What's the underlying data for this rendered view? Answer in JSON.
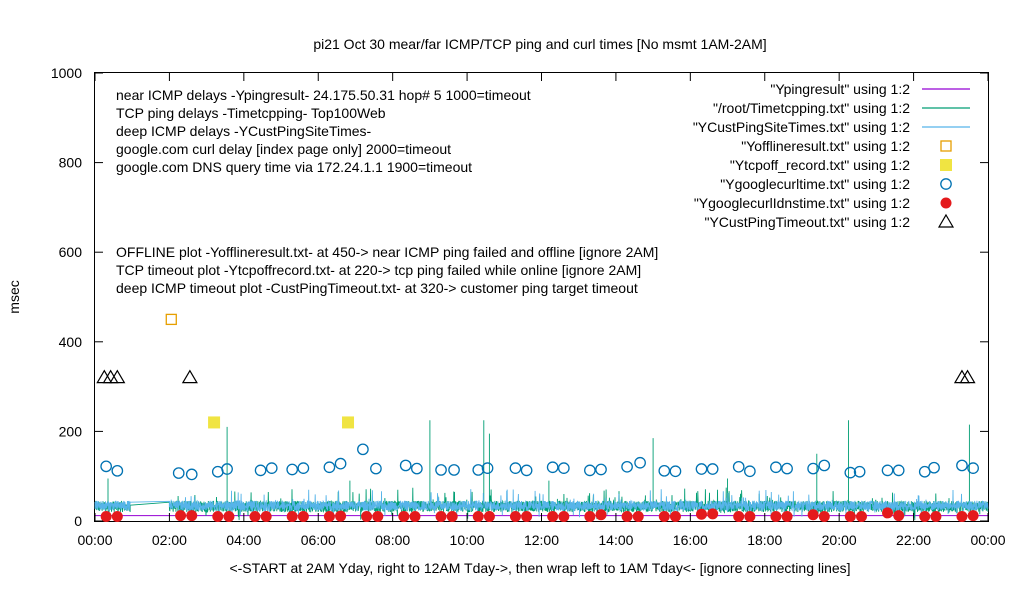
{
  "chart_data": {
    "type": "line",
    "title": "pi21 Oct 30  mear/far ICMP/TCP ping and curl times [No msmt 1AM-2AM]",
    "xlabel": "<-START at 2AM Yday, right to 12AM Tday->, then wrap left to 1AM Tday<- [ignore connecting lines]",
    "ylabel": "msec",
    "xlim": [
      0,
      24
    ],
    "ylim": [
      0,
      1000
    ],
    "x_ticks": [
      {
        "v": 0,
        "label": "00:00"
      },
      {
        "v": 2,
        "label": "02:00"
      },
      {
        "v": 4,
        "label": "04:00"
      },
      {
        "v": 6,
        "label": "06:00"
      },
      {
        "v": 8,
        "label": "08:00"
      },
      {
        "v": 10,
        "label": "10:00"
      },
      {
        "v": 12,
        "label": "12:00"
      },
      {
        "v": 14,
        "label": "14:00"
      },
      {
        "v": 16,
        "label": "16:00"
      },
      {
        "v": 18,
        "label": "18:00"
      },
      {
        "v": 20,
        "label": "20:00"
      },
      {
        "v": 22,
        "label": "22:00"
      },
      {
        "v": 24,
        "label": "00:00"
      }
    ],
    "y_ticks": [
      {
        "v": 0,
        "label": "0"
      },
      {
        "v": 200,
        "label": "200"
      },
      {
        "v": 400,
        "label": "400"
      },
      {
        "v": 600,
        "label": "600"
      },
      {
        "v": 800,
        "label": "800"
      },
      {
        "v": 1000,
        "label": "1000"
      }
    ],
    "annotations": {
      "top": [
        "near ICMP delays -Ypingresult- 24.175.50.31 hop# 5 1000=timeout",
        "TCP ping delays -Timetcpping- Top100Web",
        "deep ICMP delays -YCustPingSiteTimes-",
        "google.com curl delay [index page only] 2000=timeout",
        "google.com DNS query time via 172.24.1.1 1900=timeout"
      ],
      "middle": [
        "OFFLINE plot -Yofflineresult.txt- at 450-> near ICMP ping failed and offline [ignore 2AM]",
        "TCP timeout plot -Ytcpoffrecord.txt- at 220-> tcp ping failed while online [ignore 2AM]",
        "deep ICMP timeout plot -CustPingTimeout.txt- at 320-> customer ping target timeout"
      ]
    },
    "series": [
      {
        "name": "\"Ypingresult\" using 1:2",
        "style": "line",
        "color": "#9400d3",
        "level": 12
      },
      {
        "name": "\"/root/Timetcpping.txt\" using 1:2",
        "style": "line",
        "color": "#009e73",
        "baseline": 30,
        "jitter": 25,
        "spikes": [
          {
            "x": 3.55,
            "y": 210
          },
          {
            "x": 9.0,
            "y": 225
          },
          {
            "x": 10.45,
            "y": 225
          },
          {
            "x": 10.6,
            "y": 195
          },
          {
            "x": 15.0,
            "y": 185
          },
          {
            "x": 20.25,
            "y": 225
          },
          {
            "x": 23.5,
            "y": 215
          },
          {
            "x": 19.4,
            "y": 150
          },
          {
            "x": 0.35,
            "y": 95
          },
          {
            "x": 6.85,
            "y": 90
          },
          {
            "x": 12.2,
            "y": 90
          },
          {
            "x": 17.0,
            "y": 95
          }
        ]
      },
      {
        "name": "\"YCustPingSiteTimes.txt\" using 1:2",
        "style": "line",
        "color": "#56b4e9",
        "baseline": 32,
        "jitter": 22
      },
      {
        "name": "\"Yofflineresult.txt\" using 1:2",
        "style": "open-square",
        "color": "#e69f00",
        "points": [
          [
            2.05,
            450
          ]
        ]
      },
      {
        "name": "\"Ytcpoff_record.txt\" using 1:2",
        "style": "filled-square",
        "color": "#f0e442",
        "points": [
          [
            3.2,
            220
          ],
          [
            6.8,
            220
          ]
        ]
      },
      {
        "name": "\"Ygooglecurltime.txt\" using 1:2",
        "style": "open-circle",
        "color": "#0072b2",
        "points": [
          [
            0.3,
            122
          ],
          [
            0.6,
            112
          ],
          [
            2.25,
            107
          ],
          [
            2.6,
            104
          ],
          [
            3.3,
            110
          ],
          [
            3.55,
            116
          ],
          [
            4.45,
            113
          ],
          [
            4.75,
            118
          ],
          [
            5.3,
            115
          ],
          [
            5.6,
            118
          ],
          [
            6.3,
            120
          ],
          [
            6.6,
            128
          ],
          [
            7.2,
            160
          ],
          [
            7.55,
            117
          ],
          [
            8.35,
            124
          ],
          [
            8.65,
            117
          ],
          [
            9.3,
            114
          ],
          [
            9.65,
            114
          ],
          [
            10.3,
            114
          ],
          [
            10.55,
            118
          ],
          [
            11.3,
            118
          ],
          [
            11.6,
            113
          ],
          [
            12.3,
            120
          ],
          [
            12.6,
            118
          ],
          [
            13.3,
            113
          ],
          [
            13.6,
            115
          ],
          [
            14.3,
            121
          ],
          [
            14.65,
            130
          ],
          [
            15.3,
            112
          ],
          [
            15.6,
            111
          ],
          [
            16.3,
            116
          ],
          [
            16.6,
            116
          ],
          [
            17.3,
            121
          ],
          [
            17.6,
            111
          ],
          [
            18.3,
            120
          ],
          [
            18.6,
            117
          ],
          [
            19.3,
            117
          ],
          [
            19.6,
            124
          ],
          [
            20.3,
            108
          ],
          [
            20.55,
            110
          ],
          [
            21.3,
            113
          ],
          [
            21.6,
            113
          ],
          [
            22.3,
            110
          ],
          [
            22.55,
            119
          ],
          [
            23.3,
            124
          ],
          [
            23.6,
            118
          ]
        ]
      },
      {
        "name": "\"YgooglecurlIdnstime.txt\" using 1:2",
        "style": "filled-circle",
        "color": "#e41a1c",
        "points": [
          [
            0.3,
            10
          ],
          [
            0.6,
            10
          ],
          [
            2.3,
            12
          ],
          [
            2.6,
            12
          ],
          [
            3.3,
            10
          ],
          [
            3.6,
            10
          ],
          [
            4.3,
            10
          ],
          [
            4.6,
            10
          ],
          [
            5.3,
            10
          ],
          [
            5.6,
            10
          ],
          [
            6.3,
            10
          ],
          [
            6.6,
            11
          ],
          [
            7.3,
            10
          ],
          [
            7.6,
            10
          ],
          [
            8.3,
            10
          ],
          [
            8.6,
            10
          ],
          [
            9.3,
            10
          ],
          [
            9.6,
            10
          ],
          [
            10.3,
            10
          ],
          [
            10.6,
            10
          ],
          [
            11.3,
            10
          ],
          [
            11.6,
            10
          ],
          [
            12.3,
            10
          ],
          [
            12.6,
            10
          ],
          [
            13.3,
            10
          ],
          [
            13.6,
            14
          ],
          [
            14.3,
            10
          ],
          [
            14.6,
            10
          ],
          [
            15.3,
            10
          ],
          [
            15.6,
            10
          ],
          [
            16.3,
            15
          ],
          [
            16.6,
            16
          ],
          [
            17.3,
            10
          ],
          [
            17.6,
            10
          ],
          [
            18.3,
            10
          ],
          [
            18.6,
            10
          ],
          [
            19.3,
            14
          ],
          [
            19.6,
            10
          ],
          [
            20.3,
            10
          ],
          [
            20.6,
            10
          ],
          [
            21.3,
            18
          ],
          [
            21.6,
            12
          ],
          [
            22.3,
            10
          ],
          [
            22.6,
            10
          ],
          [
            23.3,
            10
          ],
          [
            23.6,
            12
          ]
        ]
      },
      {
        "name": "\"YCustPingTimeout.txt\" using 1:2",
        "style": "open-triangle",
        "color": "#000000",
        "points": [
          [
            0.25,
            320
          ],
          [
            0.42,
            320
          ],
          [
            0.6,
            320
          ],
          [
            2.55,
            320
          ],
          [
            23.3,
            320
          ],
          [
            23.45,
            320
          ]
        ]
      }
    ]
  }
}
